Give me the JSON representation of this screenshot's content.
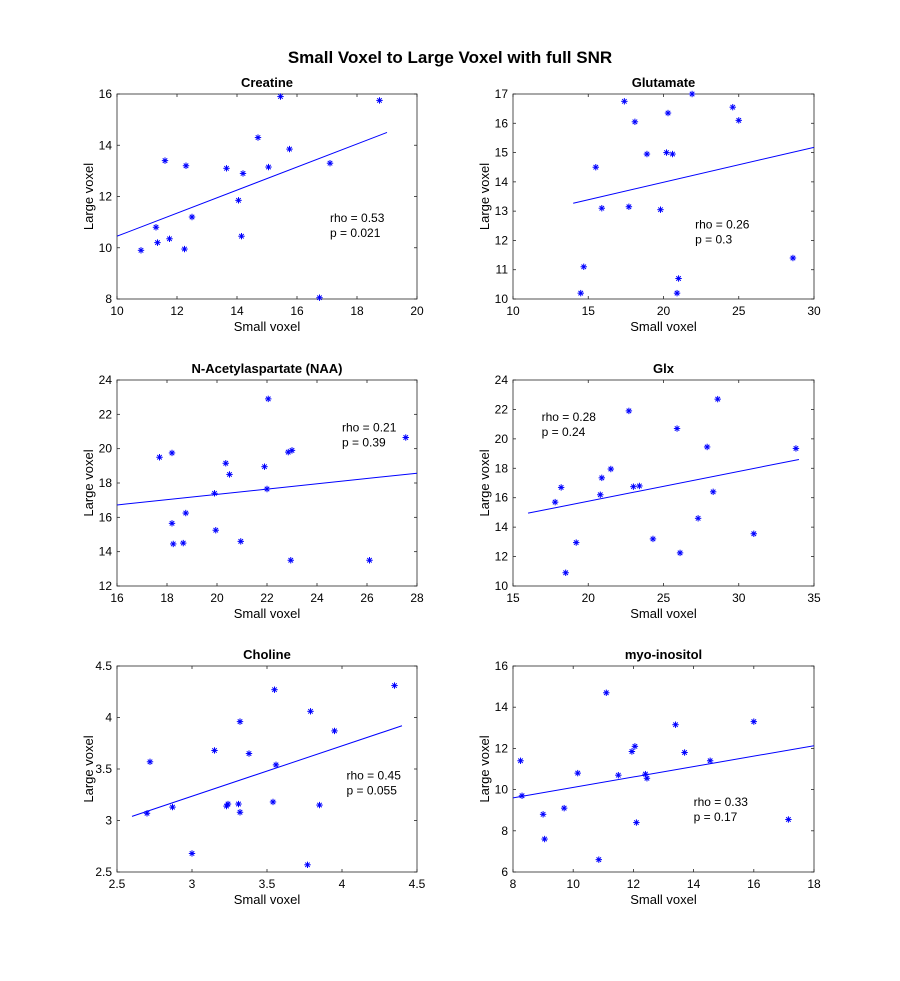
{
  "figure_title": "Small Voxel to Large Voxel with full SNR",
  "colors": {
    "marker": "#0000ff",
    "fit": "#0000ff",
    "axis": "#262626",
    "text": "#000000"
  },
  "chart_data": [
    {
      "type": "scatter",
      "title": "Creatine",
      "xlabel": "Small voxel",
      "ylabel": "Large voxel",
      "xlim": [
        10,
        20
      ],
      "ylim": [
        8,
        16
      ],
      "xticks": [
        10,
        12,
        14,
        16,
        18,
        20
      ],
      "yticks": [
        8,
        10,
        12,
        14,
        16
      ],
      "x": [
        10.8,
        11.3,
        11.35,
        11.6,
        11.75,
        12.25,
        12.3,
        12.5,
        13.65,
        14.05,
        14.15,
        14.2,
        14.7,
        15.05,
        15.45,
        15.75,
        16.75,
        17.1,
        18.75
      ],
      "y": [
        9.9,
        10.8,
        10.2,
        13.4,
        10.35,
        9.95,
        13.2,
        11.2,
        13.1,
        11.85,
        10.45,
        12.9,
        14.3,
        13.15,
        15.9,
        13.85,
        8.05,
        13.3,
        15.75
      ],
      "fit": {
        "x": [
          10,
          19
        ],
        "y": [
          10.45,
          14.5
        ]
      },
      "annotation": {
        "lines": [
          "rho = 0.53",
          "p = 0.021"
        ],
        "x": 17.1,
        "y": 11.0
      }
    },
    {
      "type": "scatter",
      "title": "Glutamate",
      "xlabel": "Small voxel",
      "ylabel": "Large voxel",
      "xlim": [
        10,
        30
      ],
      "ylim": [
        10,
        17
      ],
      "xticks": [
        10,
        15,
        20,
        25,
        30
      ],
      "yticks": [
        10,
        11,
        12,
        13,
        14,
        15,
        16,
        17
      ],
      "x": [
        14.5,
        14.7,
        15.5,
        15.9,
        17.4,
        17.7,
        18.1,
        18.9,
        19.8,
        20.2,
        20.3,
        20.6,
        20.9,
        21.0,
        21.9,
        24.6,
        25.0,
        28.6
      ],
      "y": [
        10.2,
        11.1,
        14.5,
        13.1,
        16.75,
        13.15,
        16.05,
        14.95,
        13.05,
        15.0,
        16.35,
        14.95,
        10.2,
        10.7,
        17.0,
        16.55,
        16.1,
        11.4
      ],
      "fit": {
        "x": [
          14,
          30
        ],
        "y": [
          13.27,
          15.18
        ]
      },
      "annotation": {
        "lines": [
          "rho = 0.26",
          "p = 0.3"
        ],
        "x": 22.1,
        "y": 12.4
      }
    },
    {
      "type": "scatter",
      "title": "N-Acetylaspartate (NAA)",
      "xlabel": "Small voxel",
      "ylabel": "Large voxel",
      "xlim": [
        16,
        28
      ],
      "ylim": [
        12,
        24
      ],
      "xticks": [
        16,
        18,
        20,
        22,
        24,
        26,
        28
      ],
      "yticks": [
        12,
        14,
        16,
        18,
        20,
        22,
        24
      ],
      "x": [
        17.7,
        18.2,
        18.2,
        18.25,
        18.65,
        18.75,
        19.9,
        19.95,
        20.35,
        20.5,
        20.95,
        21.9,
        22.0,
        22.05,
        22.85,
        22.95,
        23.0,
        26.1,
        27.55
      ],
      "y": [
        19.5,
        19.75,
        15.65,
        14.45,
        14.5,
        16.25,
        17.4,
        15.25,
        19.15,
        18.5,
        14.6,
        18.95,
        17.65,
        22.9,
        19.8,
        13.5,
        19.9,
        13.5,
        20.65
      ],
      "fit": {
        "x": [
          16,
          28
        ],
        "y": [
          16.72,
          18.57
        ]
      },
      "annotation": {
        "lines": [
          "rho = 0.21",
          "p = 0.39"
        ],
        "x": 25.0,
        "y": 21.0
      }
    },
    {
      "type": "scatter",
      "title": "Glx",
      "xlabel": "Small voxel",
      "ylabel": "Large voxel",
      "xlim": [
        15,
        35
      ],
      "ylim": [
        10,
        24
      ],
      "xticks": [
        15,
        20,
        25,
        30,
        35
      ],
      "yticks": [
        10,
        12,
        14,
        16,
        18,
        20,
        22,
        24
      ],
      "x": [
        17.8,
        18.2,
        18.5,
        19.2,
        20.8,
        20.9,
        21.5,
        22.7,
        23.0,
        23.4,
        24.3,
        25.9,
        26.1,
        27.3,
        27.9,
        28.3,
        28.6,
        31.0,
        33.8
      ],
      "y": [
        15.7,
        16.7,
        10.9,
        12.95,
        16.2,
        17.35,
        17.95,
        21.9,
        16.75,
        16.8,
        13.2,
        20.7,
        12.25,
        14.6,
        19.45,
        16.4,
        22.7,
        13.55,
        19.35
      ],
      "fit": {
        "x": [
          16,
          34
        ],
        "y": [
          14.95,
          18.6
        ]
      },
      "annotation": {
        "lines": [
          "rho = 0.28",
          "p = 0.24"
        ],
        "x": 16.9,
        "y": 21.2
      }
    },
    {
      "type": "scatter",
      "title": "Choline",
      "xlabel": "Small voxel",
      "ylabel": "Large voxel",
      "xlim": [
        2.5,
        4.5
      ],
      "ylim": [
        2.5,
        4.5
      ],
      "xticks": [
        2.5,
        3,
        3.5,
        4,
        4.5
      ],
      "yticks": [
        2.5,
        3,
        3.5,
        4,
        4.5
      ],
      "x": [
        2.7,
        2.72,
        2.87,
        3.0,
        3.15,
        3.23,
        3.24,
        3.31,
        3.32,
        3.32,
        3.38,
        3.54,
        3.55,
        3.56,
        3.77,
        3.79,
        3.85,
        3.95,
        4.35
      ],
      "y": [
        3.07,
        3.57,
        3.13,
        2.68,
        3.68,
        3.14,
        3.16,
        3.16,
        3.96,
        3.08,
        3.65,
        3.18,
        4.27,
        3.54,
        2.57,
        4.06,
        3.15,
        3.87,
        4.31
      ],
      "fit": {
        "x": [
          2.6,
          4.4
        ],
        "y": [
          3.04,
          3.92
        ]
      },
      "annotation": {
        "lines": [
          "rho = 0.45",
          "p = 0.055"
        ],
        "x": 4.03,
        "y": 3.4
      }
    },
    {
      "type": "scatter",
      "title": "myo-inositol",
      "xlabel": "Small voxel",
      "ylabel": "Large voxel",
      "xlim": [
        8,
        18
      ],
      "ylim": [
        6,
        16
      ],
      "xticks": [
        8,
        10,
        12,
        14,
        16,
        18
      ],
      "yticks": [
        6,
        8,
        10,
        12,
        14,
        16
      ],
      "x": [
        8.25,
        8.3,
        9.0,
        9.05,
        9.7,
        10.15,
        10.85,
        11.1,
        11.5,
        11.95,
        12.05,
        12.1,
        12.4,
        12.45,
        13.4,
        13.7,
        14.55,
        16.0,
        17.15
      ],
      "y": [
        11.4,
        9.7,
        8.8,
        7.6,
        9.1,
        10.8,
        6.6,
        14.7,
        10.7,
        11.85,
        12.1,
        8.4,
        10.75,
        10.55,
        13.15,
        11.8,
        11.4,
        13.3,
        8.55
      ],
      "fit": {
        "x": [
          8,
          18
        ],
        "y": [
          9.6,
          12.13
        ]
      },
      "annotation": {
        "lines": [
          "rho = 0.33",
          "p = 0.17"
        ],
        "x": 14.0,
        "y": 9.2
      }
    }
  ]
}
